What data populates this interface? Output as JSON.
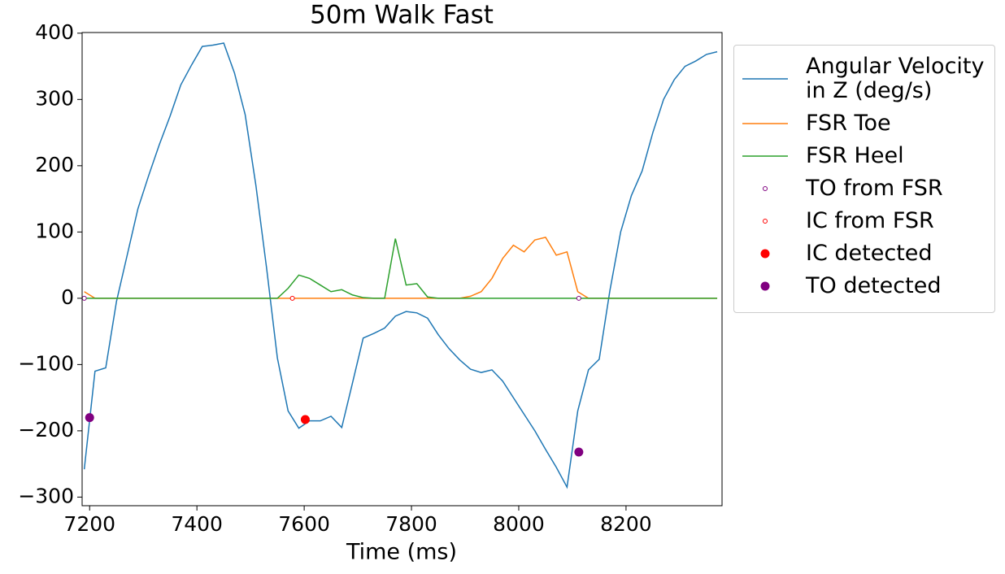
{
  "chart_data": {
    "type": "line",
    "title": "50m Walk Fast",
    "xlabel": "Time (ms)",
    "xlim": [
      7186,
      8379
    ],
    "ylim": [
      -313,
      401
    ],
    "xticks": [
      7200,
      7400,
      7600,
      7800,
      8000,
      8200
    ],
    "yticks": [
      {
        "value": -300,
        "label": "−300"
      },
      {
        "value": -200,
        "label": "−200"
      },
      {
        "value": -100,
        "label": "−100"
      },
      0,
      100,
      200,
      300,
      400
    ],
    "legend": "outside right",
    "x": [
      7190,
      7210,
      7230,
      7250,
      7270,
      7290,
      7310,
      7330,
      7350,
      7370,
      7390,
      7410,
      7430,
      7450,
      7470,
      7490,
      7510,
      7530,
      7550,
      7570,
      7590,
      7610,
      7630,
      7650,
      7670,
      7690,
      7710,
      7730,
      7750,
      7770,
      7790,
      7810,
      7830,
      7850,
      7870,
      7890,
      7910,
      7930,
      7950,
      7970,
      7990,
      8010,
      8030,
      8050,
      8070,
      8090,
      8110,
      8130,
      8150,
      8170,
      8190,
      8210,
      8230,
      8250,
      8270,
      8290,
      8310,
      8330,
      8350,
      8370
    ],
    "series": [
      {
        "name": "Angular Velocity\n in Z (deg/s)",
        "color": "#1f77b4",
        "values": [
          -258,
          -110,
          -105,
          -5,
          65,
          135,
          185,
          232,
          275,
          322,
          352,
          380,
          382,
          385,
          340,
          277,
          170,
          45,
          -90,
          -170,
          -196,
          -185,
          -185,
          -178,
          -195,
          -128,
          -60,
          -53,
          -45,
          -27,
          -20,
          -22,
          -30,
          -55,
          -76,
          -93,
          -107,
          -112,
          -108,
          -125,
          -150,
          -175,
          -200,
          -228,
          -255,
          -285,
          -170,
          -108,
          -92,
          12,
          100,
          155,
          192,
          250,
          300,
          330,
          350,
          358,
          368,
          372
        ]
      },
      {
        "name": "FSR Toe",
        "color": "#ff7f0e",
        "values": [
          10,
          0,
          0,
          0,
          0,
          0,
          0,
          0,
          0,
          0,
          0,
          0,
          0,
          0,
          0,
          0,
          0,
          0,
          0,
          0,
          0,
          0,
          0,
          0,
          0,
          0,
          0,
          0,
          0,
          0,
          0,
          0,
          0,
          0,
          0,
          0,
          3,
          10,
          30,
          60,
          80,
          70,
          88,
          92,
          65,
          70,
          10,
          0,
          0,
          0,
          0,
          0,
          0,
          0,
          0,
          0,
          0,
          0,
          0,
          0
        ]
      },
      {
        "name": "FSR Heel",
        "color": "#2ca02c",
        "values": [
          0,
          0,
          0,
          0,
          0,
          0,
          0,
          0,
          0,
          0,
          0,
          0,
          0,
          0,
          0,
          0,
          0,
          0,
          0,
          15,
          35,
          30,
          20,
          10,
          13,
          5,
          1,
          0,
          0,
          90,
          20,
          22,
          2,
          0,
          0,
          0,
          0,
          0,
          0,
          0,
          0,
          0,
          0,
          0,
          0,
          0,
          0,
          0,
          0,
          0,
          0,
          0,
          0,
          0,
          0,
          0,
          0,
          0,
          0,
          0
        ]
      },
      {
        "name": "TO from FSR",
        "color": "purple",
        "type": "scatter",
        "marker": "hollow",
        "x": [
          7190,
          8112
        ],
        "values": [
          0,
          0
        ]
      },
      {
        "name": "IC from FSR",
        "color": "red",
        "type": "scatter",
        "marker": "hollow",
        "x": [
          7578
        ],
        "values": [
          0
        ]
      },
      {
        "name": "IC detected",
        "color": "red",
        "type": "scatter",
        "marker": "filled",
        "x": [
          7602
        ],
        "values": [
          -183
        ]
      },
      {
        "name": "TO detected",
        "color": "purple",
        "type": "scatter",
        "marker": "filled",
        "x": [
          7200,
          8112
        ],
        "values": [
          -180,
          -232
        ]
      }
    ]
  }
}
